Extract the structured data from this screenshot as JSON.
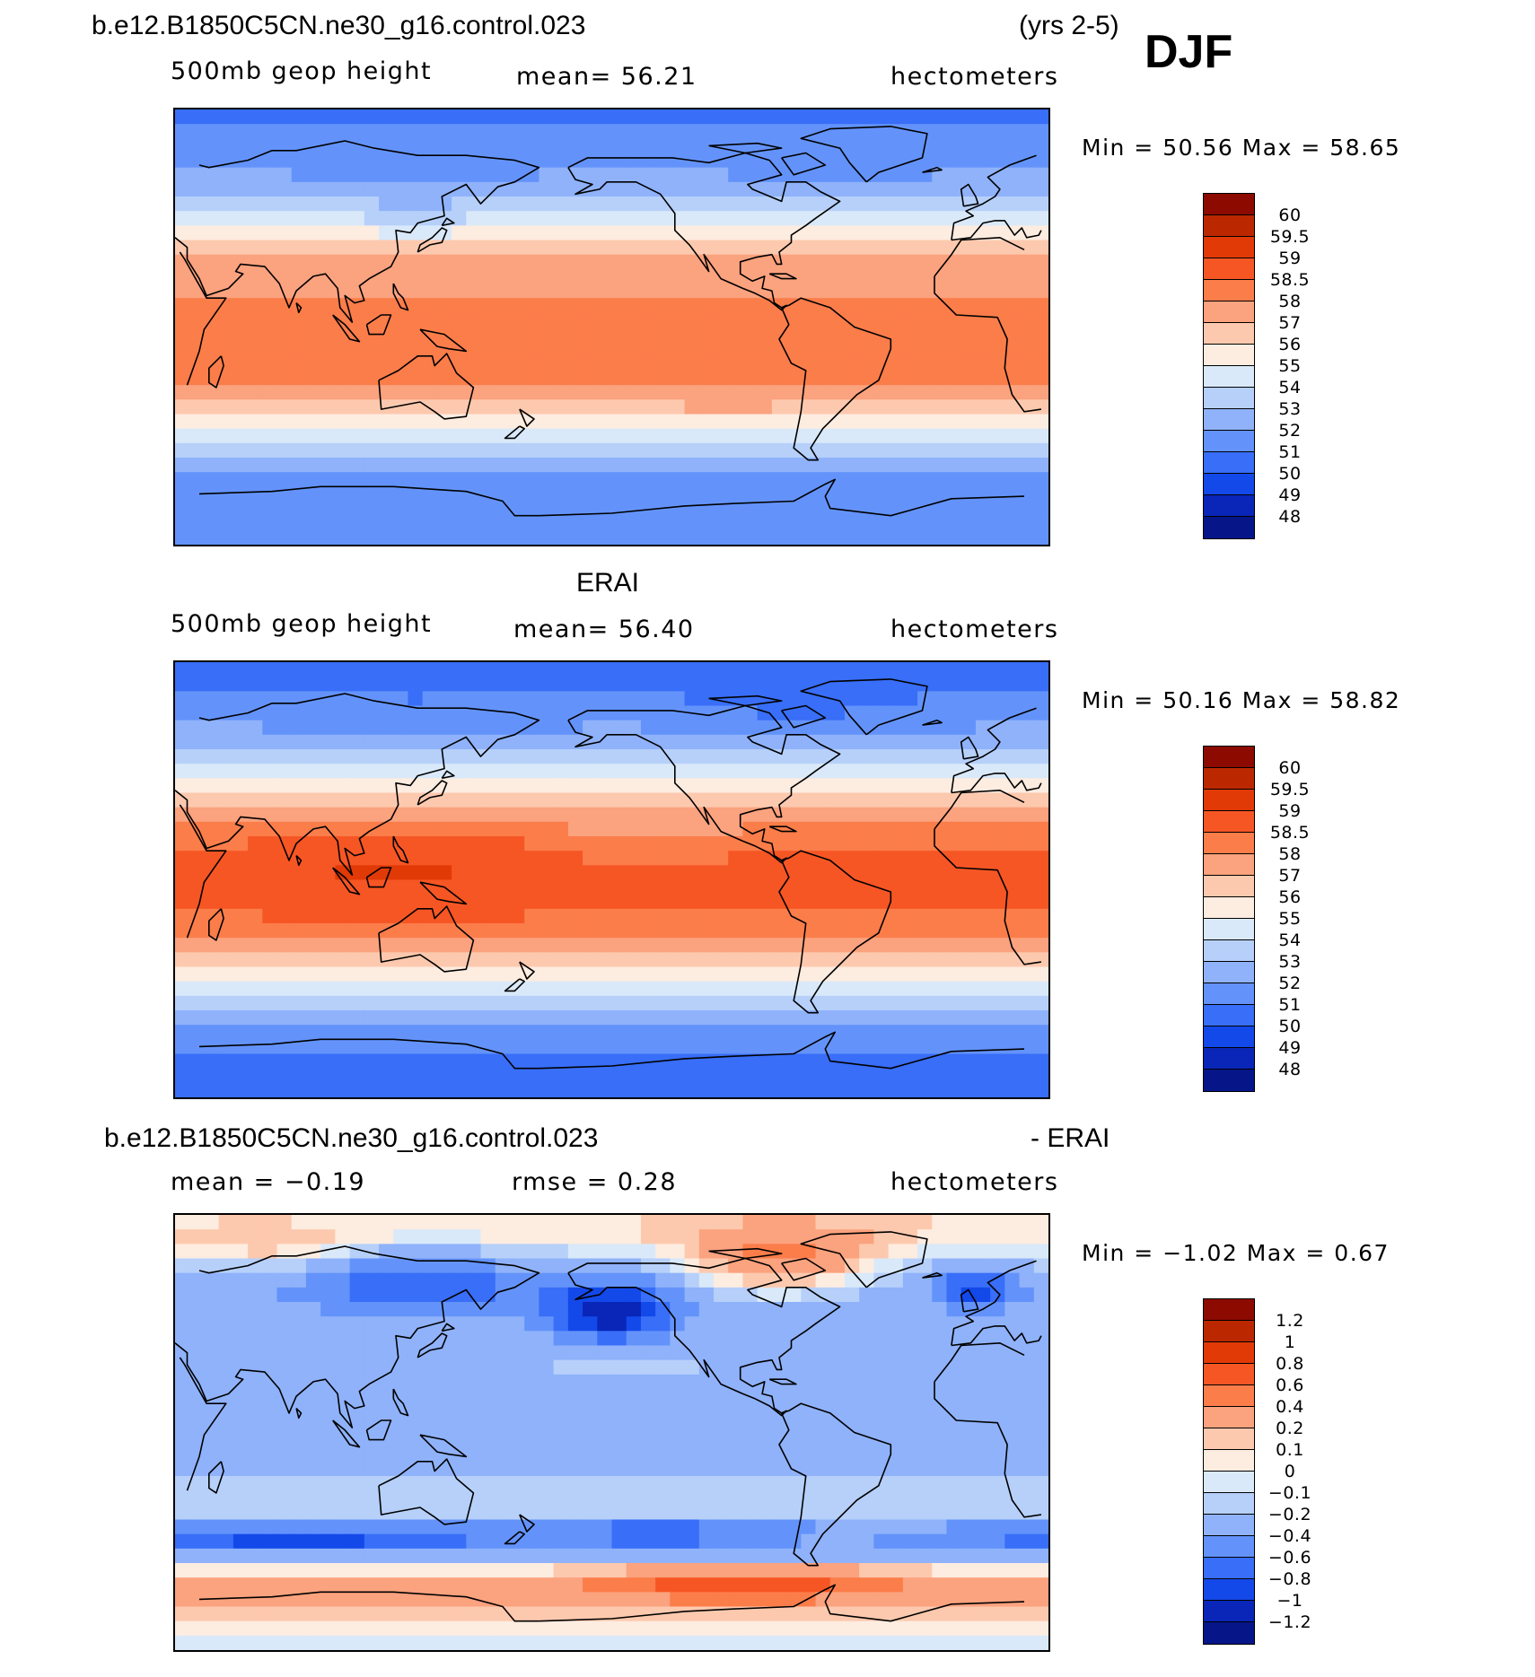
{
  "header": {
    "title": "b.e12.B1850C5CN.ne30_g16.control.023",
    "years": "(yrs 2-5)",
    "season": "DJF"
  },
  "panels": [
    {
      "id": "model",
      "variable": "500mb geop height",
      "stat1": "mean=   56.21",
      "stat2": "",
      "units": "hectometers",
      "minmax": "Min =    50.56 Max =    58.65",
      "min": 50.56,
      "max": 58.65,
      "mean": 56.21
    },
    {
      "id": "obs",
      "title": "ERAI",
      "variable": "500mb geop height",
      "stat1": "mean=   56.40",
      "stat2": "",
      "units": "hectometers",
      "minmax": "Min =    50.16 Max =    58.82",
      "min": 50.16,
      "max": 58.82,
      "mean": 56.4
    },
    {
      "id": "diff",
      "title_left": "b.e12.B1850C5CN.ne30_g16.control.023",
      "title_right": "- ERAI",
      "stat1": "mean =   −0.19",
      "stat2": "rmse =     0.28",
      "units": "hectometers",
      "minmax": "Min =   −1.02 Max =     0.67",
      "min": -1.02,
      "max": 0.67,
      "mean": -0.19,
      "rmse": 0.28
    }
  ],
  "colorbars": {
    "height": {
      "labels": [
        "60",
        "59.5",
        "59",
        "58.5",
        "58",
        "57",
        "56",
        "55",
        "54",
        "53",
        "52",
        "51",
        "50",
        "49",
        "48"
      ],
      "colors": [
        "#8c0a00",
        "#bb2800",
        "#e13a07",
        "#f65624",
        "#fb7d4a",
        "#fba27e",
        "#fdc9ae",
        "#fdece0",
        "#d9e9f9",
        "#b6d0fa",
        "#8fb2fa",
        "#6393fa",
        "#386ef8",
        "#1348e9",
        "#0926b8",
        "#061689"
      ]
    },
    "diff": {
      "labels": [
        "1.2",
        "1",
        "0.8",
        "0.6",
        "0.4",
        "0.2",
        "0.1",
        "0",
        "−0.1",
        "−0.2",
        "−0.4",
        "−0.6",
        "−0.8",
        "−1",
        "−1.2"
      ],
      "colors": [
        "#8c0a00",
        "#bb2800",
        "#e13a07",
        "#f65624",
        "#fb7d4a",
        "#fba27e",
        "#fdc9ae",
        "#fdece0",
        "#d9e9f9",
        "#b6d0fa",
        "#8fb2fa",
        "#6393fa",
        "#386ef8",
        "#1348e9",
        "#0926b8",
        "#061689"
      ]
    }
  },
  "chart_data": [
    {
      "type": "heatmap",
      "title": "b.e12.B1850C5CN.ne30_g16.control.023 (yrs 2-5) DJF",
      "subtitle": "500mb geop height",
      "units": "hectometers",
      "mean": 56.21,
      "min": 50.56,
      "max": 58.65,
      "levels": [
        48,
        49,
        50,
        51,
        52,
        53,
        54,
        55,
        56,
        57,
        58,
        58.5,
        59,
        59.5,
        60
      ],
      "latitudes": [
        90,
        80,
        70,
        60,
        50,
        40,
        30,
        20,
        10,
        0,
        -10,
        -20,
        -30,
        -40,
        -50,
        -60,
        -70,
        -80,
        -90
      ],
      "zonal_band_values": [
        50.8,
        51.1,
        51.6,
        52.3,
        53.6,
        55.0,
        56.7,
        57.8,
        58.1,
        58.2,
        58.2,
        58.1,
        57.4,
        55.8,
        53.6,
        51.8,
        51.2,
        51.2,
        51.3
      ]
    },
    {
      "type": "heatmap",
      "title": "ERAI",
      "subtitle": "500mb geop height",
      "units": "hectometers",
      "mean": 56.4,
      "min": 50.16,
      "max": 58.82,
      "levels": [
        48,
        49,
        50,
        51,
        52,
        53,
        54,
        55,
        56,
        57,
        58,
        58.5,
        59,
        59.5,
        60
      ],
      "latitudes": [
        90,
        80,
        70,
        60,
        50,
        40,
        30,
        20,
        10,
        0,
        -10,
        -20,
        -30,
        -40,
        -50,
        -60,
        -70,
        -80,
        -90
      ],
      "zonal_band_values": [
        50.5,
        50.8,
        51.4,
        52.3,
        53.8,
        55.2,
        57.0,
        58.2,
        58.6,
        58.7,
        58.6,
        58.3,
        57.5,
        55.8,
        53.4,
        51.6,
        51.0,
        50.6,
        50.4
      ]
    },
    {
      "type": "heatmap",
      "title": "b.e12.B1850C5CN.ne30_g16.control.023 - ERAI",
      "units": "hectometers",
      "mean": -0.19,
      "rmse": 0.28,
      "min": -1.02,
      "max": 0.67,
      "levels": [
        -1.2,
        -1,
        -0.8,
        -0.6,
        -0.4,
        -0.2,
        -0.1,
        0,
        0.1,
        0.2,
        0.4,
        0.6,
        0.8,
        1,
        1.2
      ],
      "latitudes": [
        90,
        80,
        70,
        60,
        50,
        40,
        30,
        20,
        10,
        0,
        -10,
        -20,
        -30,
        -40,
        -50,
        -60,
        -70,
        -80,
        -90
      ],
      "zonal_band_values": [
        0.1,
        0.05,
        -0.2,
        -0.35,
        -0.3,
        -0.25,
        -0.2,
        -0.3,
        -0.35,
        -0.35,
        -0.3,
        -0.2,
        -0.1,
        -0.4,
        -0.3,
        0.2,
        0.3,
        0.05,
        -0.1
      ]
    }
  ]
}
